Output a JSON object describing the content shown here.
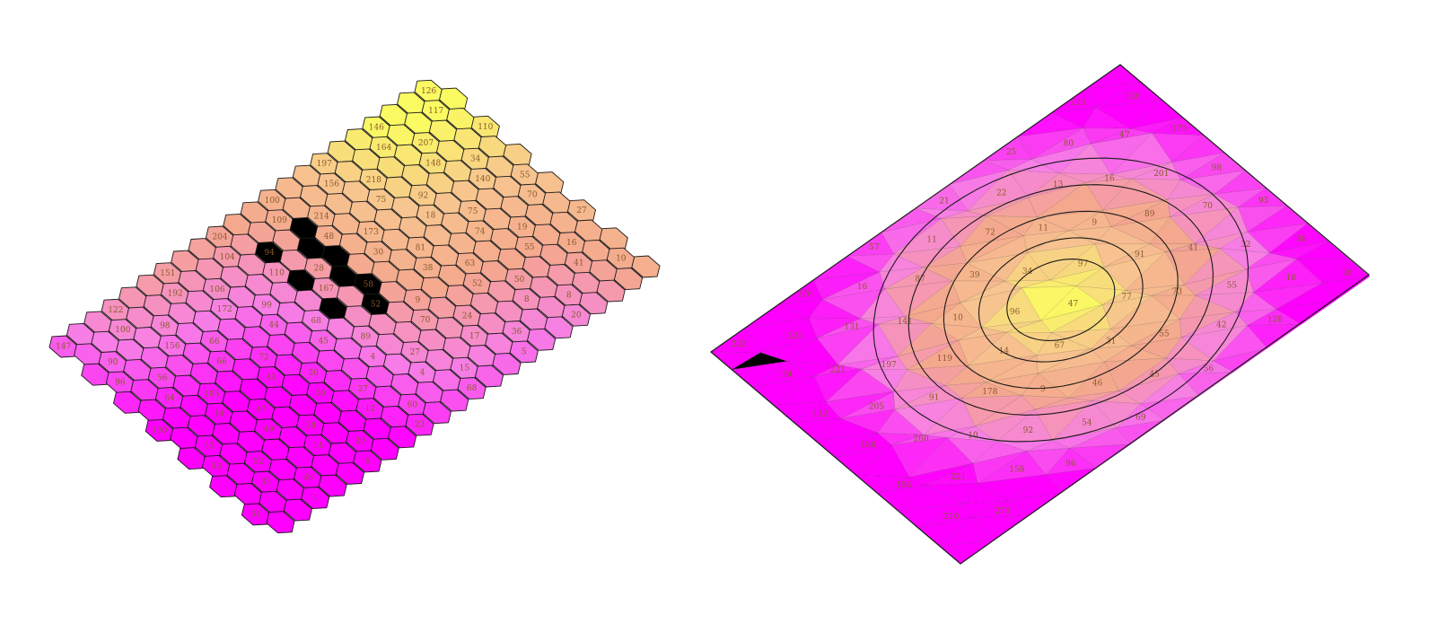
{
  "palette": {
    "magenta": "#ff00ff",
    "pink": "#f77fe6",
    "salmon": "#f4a88e",
    "peach": "#f7c58f",
    "yellow": "#fafa62",
    "black": "#000000",
    "outline": "#1a1a1a"
  },
  "left_map": {
    "name": "hexagonal-cell-map",
    "rows": 14,
    "cols": 22,
    "cell_labels": [
      "147",
      "122",
      "151",
      "204",
      "100",
      "197",
      "146",
      "126",
      "100",
      "192",
      "104",
      "109",
      "156",
      "164",
      "117",
      "90",
      "98",
      "106",
      "94",
      "214",
      "218",
      "207",
      "96",
      "156",
      "172",
      "110",
      "48",
      "75",
      "148",
      "110",
      "56",
      "66",
      "99",
      "28",
      "173",
      "92",
      "34",
      "64",
      "66",
      "44",
      "167",
      "30",
      "18",
      "140",
      "130",
      "105",
      "72",
      "68",
      "58",
      "81",
      "75",
      "55",
      "14",
      "43",
      "45",
      "52",
      "38",
      "74",
      "70",
      "53",
      "47",
      "50",
      "89",
      "9",
      "63",
      "19",
      "53",
      "49",
      "50",
      "4",
      "70",
      "52",
      "55",
      "27",
      "52",
      "38",
      "37",
      "27",
      "24",
      "50",
      "16",
      "33",
      "14",
      "12",
      "4",
      "17",
      "8",
      "41",
      "31",
      "48",
      "20",
      "60",
      "15",
      "36",
      "8",
      "10",
      "1",
      "6",
      "23",
      "68",
      "5",
      "20"
    ],
    "black_cells": 9
  },
  "right_map": {
    "name": "triangulated-contour-map",
    "cell_labels": [
      "222",
      "174",
      "112",
      "180",
      "196",
      "210",
      "225",
      "221",
      "205",
      "260",
      "221",
      "273",
      "176",
      "131",
      "197",
      "91",
      "10",
      "158",
      "16",
      "141",
      "119",
      "178",
      "92",
      "96",
      "57",
      "87",
      "10",
      "14",
      "9",
      "54",
      "11",
      "39",
      "96",
      "67",
      "46",
      "69",
      "21",
      "72",
      "34",
      "47",
      "31",
      "45",
      "22",
      "11",
      "97",
      "77",
      "55",
      "56",
      "25",
      "13",
      "9",
      "91",
      "73",
      "42",
      "80",
      "16",
      "89",
      "41",
      "55",
      "128",
      "213",
      "47",
      "201",
      "70",
      "32",
      "16",
      "126",
      "175",
      "98",
      "93",
      "88",
      "26",
      "32",
      "99",
      "12",
      "14",
      "67",
      "48"
    ],
    "black_cells": 1
  }
}
